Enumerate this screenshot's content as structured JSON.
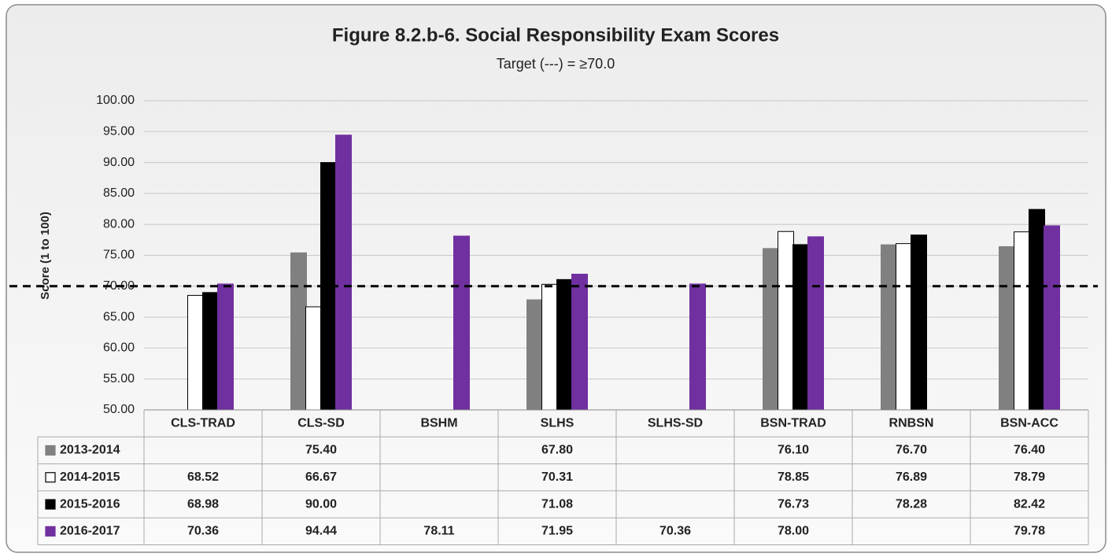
{
  "chart_data": {
    "type": "bar",
    "title": "Figure 8.2.b-6. Social Responsibility Exam Scores",
    "subtitle": "Target (---) = ≥70.0",
    "y_label": "Score  (1 to 100)",
    "target": 70,
    "categories": [
      "CLS-TRAD",
      "CLS-SD",
      "BSHM",
      "SLHS",
      "SLHS-SD",
      "BSN-TRAD",
      "RNBSN",
      "BSN-ACC"
    ],
    "series": [
      {
        "name": "2013-2014",
        "color": "#808080",
        "values": [
          null,
          75.4,
          null,
          67.8,
          null,
          76.1,
          76.7,
          76.4
        ],
        "value_labels": [
          null,
          "75.40",
          null,
          "67.80",
          null,
          "76.10",
          "76.70",
          "76.40"
        ]
      },
      {
        "name": "2014-2015",
        "color": "#ffffff",
        "values": [
          68.52,
          66.67,
          null,
          70.31,
          null,
          78.85,
          76.89,
          78.79
        ],
        "value_labels": [
          "68.52",
          "66.67",
          null,
          "70.31",
          null,
          "78.85",
          "76.89",
          "78.79"
        ]
      },
      {
        "name": "2015-2016",
        "color": "#000000",
        "values": [
          68.98,
          90,
          null,
          71.08,
          null,
          76.73,
          78.28,
          82.42
        ],
        "value_labels": [
          "68.98",
          "90.00",
          null,
          "71.08",
          null,
          "76.73",
          "78.28",
          "82.42"
        ]
      },
      {
        "name": "2016-2017",
        "color": "#7030a0",
        "values": [
          70.36,
          94.44,
          78.11,
          71.95,
          70.36,
          78,
          null,
          79.78
        ],
        "value_labels": [
          "70.36",
          "94.44",
          "78.11",
          "71.95",
          "70.36",
          "78.00",
          null,
          "79.78"
        ]
      }
    ],
    "ylim": [
      50,
      100
    ],
    "yticks": [
      {
        "value": 50,
        "label": "50.00"
      },
      {
        "value": 55,
        "label": "55.00"
      },
      {
        "value": 60,
        "label": "60.00"
      },
      {
        "value": 65,
        "label": "65.00"
      },
      {
        "value": 70,
        "label": "70.00"
      },
      {
        "value": 75,
        "label": "75.00"
      },
      {
        "value": 80,
        "label": "80.00"
      },
      {
        "value": 85,
        "label": "85.00"
      },
      {
        "value": 90,
        "label": "90.00"
      },
      {
        "value": 95,
        "label": "95.00"
      },
      {
        "value": 100,
        "label": "100.00"
      }
    ],
    "grid": true
  }
}
